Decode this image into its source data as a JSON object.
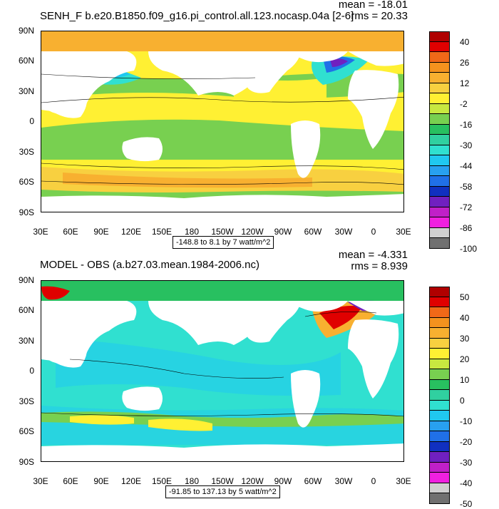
{
  "panel1": {
    "title": "SENH_F b.e20.B1850.f09_g16.pi_control.all.123.nocasp.04a [2-6]",
    "mean": "mean = -18.01",
    "rms": "rms = 20.33",
    "range": "-148.8 to 8.1 by 7 watt/m^2",
    "colorbar_labels": [
      "40",
      "26",
      "12",
      "-2",
      "-16",
      "-30",
      "-44",
      "-58",
      "-72",
      "-86",
      "-100"
    ],
    "colors": [
      "#b00000",
      "#e00000",
      "#f06818",
      "#f4921e",
      "#f8b030",
      "#f8d040",
      "#fff033",
      "#c8e840",
      "#78d050",
      "#28c060",
      "#30d0a0",
      "#30e0d0",
      "#20c8f0",
      "#28a0f0",
      "#2070e8",
      "#1030c0",
      "#7020c0",
      "#c020c8",
      "#f020e0",
      "#d0d0d0",
      "#707070"
    ]
  },
  "panel2": {
    "title": "MODEL - OBS (a.b27.03.mean.1984-2006.nc)",
    "mean": "mean = -4.331",
    "rms": "rms = 8.939",
    "range": "-91.85 to 137.13 by 5 watt/m^2",
    "colorbar_labels": [
      "50",
      "40",
      "30",
      "20",
      "10",
      "0",
      "-10",
      "-20",
      "-30",
      "-40",
      "-50"
    ],
    "colors": [
      "#b00000",
      "#e00000",
      "#f06818",
      "#f4921e",
      "#f8b030",
      "#f8d040",
      "#fff033",
      "#c8e840",
      "#78d050",
      "#28c060",
      "#30d0a0",
      "#30e0d0",
      "#20c8f0",
      "#28a0f0",
      "#2070e8",
      "#1030c0",
      "#7020c0",
      "#c020c8",
      "#f020e0",
      "#d0d0d0",
      "#707070"
    ]
  },
  "axes": {
    "lat_labels": [
      "90N",
      "60N",
      "30N",
      "0",
      "30S",
      "60S",
      "90S"
    ],
    "lon_labels": [
      "30E",
      "60E",
      "90E",
      "120E",
      "150E",
      "180",
      "150W",
      "120W",
      "90W",
      "60W",
      "30W",
      "0",
      "30E"
    ]
  }
}
